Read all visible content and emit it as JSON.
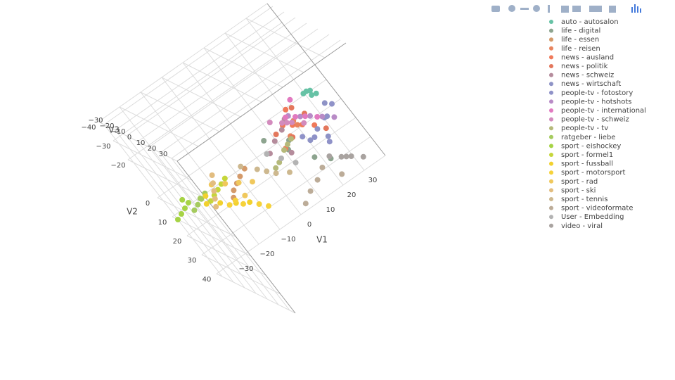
{
  "chart_data": {
    "type": "scatter3d",
    "xlabel": "V1",
    "ylabel": "V2",
    "zlabel": "V3",
    "xlim": [
      -40,
      40
    ],
    "ylim": [
      -40,
      40
    ],
    "zlim": [
      -35,
      35
    ],
    "xticks": [
      {
        "value": -30,
        "label": "−30"
      },
      {
        "value": -20,
        "label": "−20"
      },
      {
        "value": -10,
        "label": "−10"
      },
      0,
      10,
      20,
      30
    ],
    "yticks": [
      {
        "value": -40,
        "label": "−40"
      },
      {
        "value": -30,
        "label": "−30"
      },
      {
        "value": -20,
        "label": "−20"
      },
      0,
      10,
      20,
      30,
      40
    ],
    "zticks": [
      {
        "value": -30,
        "label": "−30"
      },
      {
        "value": -20,
        "label": "−20"
      },
      {
        "value": -10,
        "label": "−10"
      },
      0,
      10,
      20,
      30
    ],
    "grid": true,
    "legend_position": "top-right",
    "series": [
      {
        "name": "auto - autosalon",
        "color": "#66c2a5",
        "x": [
          18,
          20,
          21,
          19,
          22
        ],
        "y": [
          -26,
          -24,
          -25,
          -27,
          -23
        ],
        "z": [
          20,
          21,
          19,
          22,
          20
        ]
      },
      {
        "name": "life - digital",
        "color": "#8da48f",
        "x": [
          5,
          8,
          -2,
          12,
          3
        ],
        "y": [
          -8,
          2,
          -12,
          5,
          -4
        ],
        "z": [
          8,
          12,
          4,
          15,
          6
        ]
      },
      {
        "name": "life - essen",
        "color": "#d49a6a",
        "x": [
          -20,
          -18,
          -22,
          -15,
          -24
        ],
        "y": [
          -3,
          -6,
          0,
          -8,
          2
        ],
        "z": [
          2,
          5,
          -1,
          6,
          0
        ]
      },
      {
        "name": "life - reisen",
        "color": "#e8845e",
        "x": [
          10,
          6,
          14,
          2,
          8
        ],
        "y": [
          -14,
          -10,
          -18,
          -6,
          -20
        ],
        "z": [
          14,
          10,
          18,
          8,
          22
        ]
      },
      {
        "name": "news - ausland",
        "color": "#f07a5a",
        "x": [
          8,
          12,
          4,
          16,
          10
        ],
        "y": [
          -16,
          -12,
          -20,
          -8,
          -22
        ],
        "z": [
          16,
          12,
          20,
          10,
          14
        ]
      },
      {
        "name": "news - politik",
        "color": "#e3775c",
        "x": [
          6,
          14,
          2,
          18,
          11
        ],
        "y": [
          -10,
          -18,
          -14,
          -6,
          -24
        ],
        "z": [
          12,
          18,
          10,
          14,
          20
        ]
      },
      {
        "name": "news - schweiz",
        "color": "#b58c9c",
        "x": [
          0,
          4,
          -4,
          7,
          2
        ],
        "y": [
          -12,
          -16,
          -8,
          -20,
          -5
        ],
        "z": [
          10,
          14,
          8,
          16,
          12
        ]
      },
      {
        "name": "news - wirtschaft",
        "color": "#8e93c6",
        "x": [
          16,
          20,
          12,
          24,
          18
        ],
        "y": [
          -6,
          -10,
          -2,
          -14,
          0
        ],
        "z": [
          10,
          14,
          6,
          12,
          8
        ]
      },
      {
        "name": "people-tv - fotostory",
        "color": "#8f92c8",
        "x": [
          14,
          22,
          18,
          26,
          10
        ],
        "y": [
          -2,
          -8,
          4,
          -12,
          -6
        ],
        "z": [
          6,
          10,
          4,
          12,
          8
        ]
      },
      {
        "name": "people-tv - hotshots",
        "color": "#b88bc6",
        "x": [
          12,
          16,
          20,
          8,
          24
        ],
        "y": [
          -18,
          -14,
          -10,
          -22,
          -6
        ],
        "z": [
          18,
          14,
          12,
          20,
          10
        ]
      },
      {
        "name": "people-tv - international",
        "color": "#e17ac0",
        "x": [
          10,
          14,
          6,
          18,
          12
        ],
        "y": [
          -20,
          -16,
          -24,
          -12,
          -28
        ],
        "z": [
          20,
          16,
          24,
          14,
          22
        ]
      },
      {
        "name": "people-tv - schweiz",
        "color": "#d38bbd",
        "x": [
          4,
          8,
          0,
          12,
          6
        ],
        "y": [
          -22,
          -18,
          -26,
          -14,
          -20
        ],
        "z": [
          22,
          18,
          24,
          16,
          20
        ]
      },
      {
        "name": "people-tv - tv",
        "color": "#b5b97a",
        "x": [
          2,
          -2,
          6,
          -4,
          4
        ],
        "y": [
          -4,
          0,
          -8,
          2,
          -6
        ],
        "z": [
          4,
          2,
          8,
          0,
          6
        ]
      },
      {
        "name": "ratgeber - liebe",
        "color": "#a5cb5e",
        "x": [
          -30,
          -32,
          -28,
          -34,
          -30
        ],
        "y": [
          4,
          6,
          2,
          8,
          4
        ],
        "z": [
          -20,
          -22,
          -18,
          -24,
          -21
        ]
      },
      {
        "name": "sport - eishockey",
        "color": "#a6d345",
        "x": [
          -36,
          -38,
          -34,
          -40,
          -35
        ],
        "y": [
          6,
          8,
          4,
          10,
          2
        ],
        "z": [
          -26,
          -28,
          -24,
          -30,
          -25
        ]
      },
      {
        "name": "sport - formel1",
        "color": "#c6d63a",
        "x": [
          -24,
          -26,
          -22,
          -28,
          -20
        ],
        "y": [
          2,
          4,
          0,
          6,
          -2
        ],
        "z": [
          -14,
          -16,
          -12,
          -18,
          -10
        ]
      },
      {
        "name": "sport - fussball",
        "color": "#f2d12e",
        "x": [
          -26,
          -22,
          -30,
          -18,
          -28
        ],
        "y": [
          8,
          10,
          6,
          12,
          4
        ],
        "z": [
          -16,
          -12,
          -18,
          -10,
          -20
        ]
      },
      {
        "name": "sport - motorsport",
        "color": "#f6d23a",
        "x": [
          -20,
          -16,
          -24,
          -14,
          -22
        ],
        "y": [
          12,
          14,
          10,
          16,
          8
        ],
        "z": [
          -12,
          -8,
          -14,
          -6,
          -10
        ]
      },
      {
        "name": "sport - rad",
        "color": "#f0c85c",
        "x": [
          -18,
          -22,
          -14,
          -26,
          -20
        ],
        "y": [
          0,
          -2,
          2,
          -4,
          4
        ],
        "z": [
          -4,
          -6,
          -2,
          -8,
          0
        ]
      },
      {
        "name": "sport - ski",
        "color": "#e2bd80",
        "x": [
          -28,
          -30,
          -26,
          -32,
          -24
        ],
        "y": [
          -4,
          -2,
          -6,
          0,
          -8
        ],
        "z": [
          -2,
          0,
          -4,
          2,
          -6
        ]
      },
      {
        "name": "sport - tennis",
        "color": "#cdb88f",
        "x": [
          -10,
          -6,
          -14,
          -2,
          -8
        ],
        "y": [
          -2,
          2,
          -6,
          4,
          0
        ],
        "z": [
          0,
          4,
          -2,
          6,
          2
        ]
      },
      {
        "name": "sport - videoformate",
        "color": "#bcac98",
        "x": [
          6,
          2,
          10,
          -2,
          14
        ],
        "y": [
          16,
          20,
          12,
          24,
          18
        ],
        "z": [
          0,
          -4,
          2,
          -6,
          4
        ]
      },
      {
        "name": "User - Embedding",
        "color": "#b3b3b3",
        "x": [
          0,
          3,
          -3
        ],
        "y": [
          0,
          4,
          -4
        ],
        "z": [
          0,
          2,
          -2
        ]
      },
      {
        "name": "video - viral",
        "color": "#a9a3a0",
        "x": [
          18,
          22,
          14,
          26,
          20
        ],
        "y": [
          12,
          16,
          8,
          20,
          14
        ],
        "z": [
          4,
          0,
          6,
          -2,
          2
        ]
      }
    ]
  }
}
